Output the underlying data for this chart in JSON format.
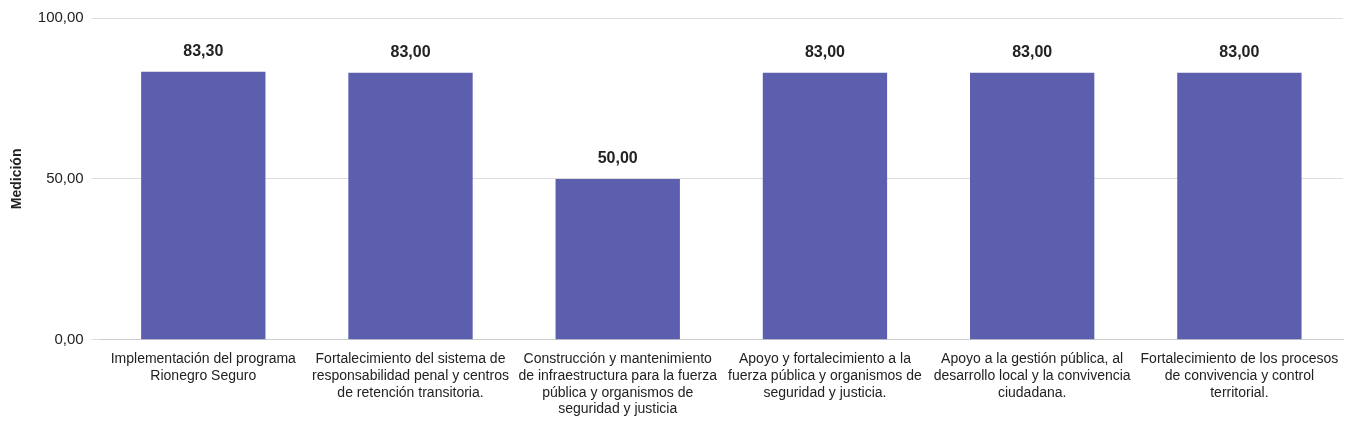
{
  "chart_data": {
    "type": "bar",
    "ylabel": "Medición",
    "categories": [
      "Implementación del programa Rionegro Seguro",
      "Fortalecimiento del sistema de responsabilidad penal y centros de retención transitoria.",
      "Construcción y mantenimiento de infraestructura para la fuerza pública y organismos de seguridad y justicia",
      "Apoyo y fortalecimiento a la fuerza pública y organismos de seguridad y justicia.",
      "Apoyo a la gestión pública, al desarrollo local y la convivencia ciudadana.",
      "Fortalecimiento de los procesos de convivencia y control territorial."
    ],
    "values": [
      83.3,
      83,
      50,
      83,
      83,
      83
    ],
    "value_labels": [
      "83,30",
      "83,00",
      "50,00",
      "83,00",
      "83,00",
      "83,00"
    ],
    "color": "#5b5fad",
    "ylim": [
      0,
      100
    ],
    "yticks": [
      {
        "value": 0,
        "label": "0,00"
      },
      {
        "value": 50,
        "label": "50,00"
      },
      {
        "value": 100,
        "label": "100,00"
      }
    ],
    "grid": "y",
    "legend": false
  }
}
